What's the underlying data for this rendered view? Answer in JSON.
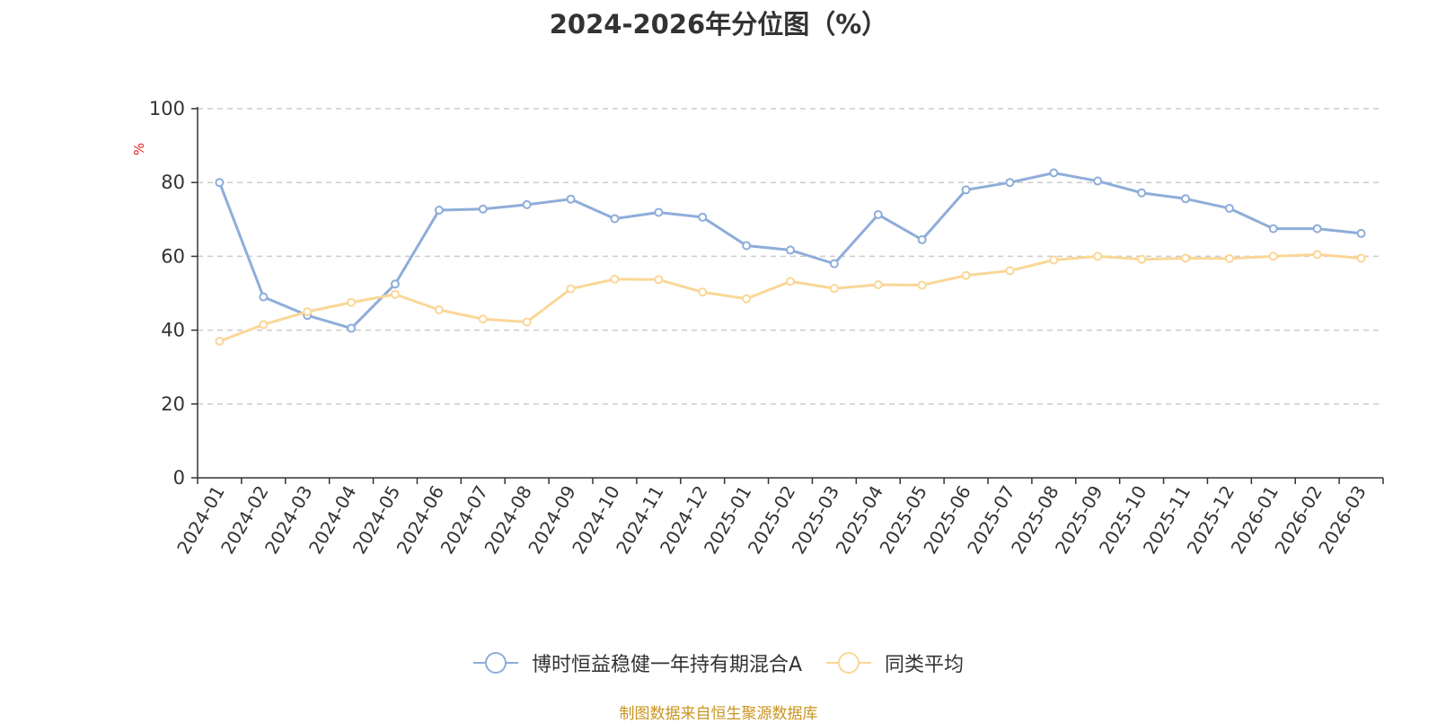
{
  "chart_data": {
    "type": "line",
    "title": "2024-2026年分位图（%）",
    "ylabel": "%",
    "ylim": [
      0,
      100
    ],
    "yticks": [
      0,
      20,
      40,
      60,
      80,
      100
    ],
    "grid": true,
    "legend_position": "bottom",
    "x": [
      "2024-01",
      "2024-02",
      "2024-03",
      "2024-04",
      "2024-05",
      "2024-06",
      "2024-07",
      "2024-08",
      "2024-09",
      "2024-10",
      "2024-11",
      "2024-12",
      "2025-01",
      "2025-02",
      "2025-03",
      "2025-04",
      "2025-05",
      "2025-06",
      "2025-07",
      "2025-08",
      "2025-09",
      "2025-10",
      "2025-11",
      "2025-12",
      "2026-01",
      "2026-02",
      "2026-03"
    ],
    "series": [
      {
        "name": "博时恒益稳健一年持有期混合A",
        "color": "#8eadd9",
        "values": [
          80,
          49,
          44,
          40.5,
          52.5,
          72.5,
          72.8,
          74,
          75.5,
          70.2,
          71.9,
          70.6,
          62.9,
          61.7,
          58,
          71.3,
          64.5,
          78,
          80,
          82.6,
          80.4,
          77.2,
          75.6,
          73,
          67.5,
          67.5,
          66.2
        ]
      },
      {
        "name": "同类平均",
        "color": "#fad797",
        "values": [
          37,
          41.5,
          45,
          47.5,
          49.7,
          45.5,
          43,
          42.2,
          51.2,
          53.8,
          53.7,
          50.3,
          48.5,
          53.2,
          51.3,
          52.3,
          52.2,
          54.8,
          56.1,
          59,
          60,
          59.2,
          59.5,
          59.4,
          60,
          60.5,
          59.5
        ]
      }
    ]
  },
  "source_text": "制图数据来自恒生聚源数据库",
  "colors": {
    "axis": "#333333",
    "grid": "#cccccc",
    "ylabel": "#e02020",
    "source": "#c9951f"
  }
}
